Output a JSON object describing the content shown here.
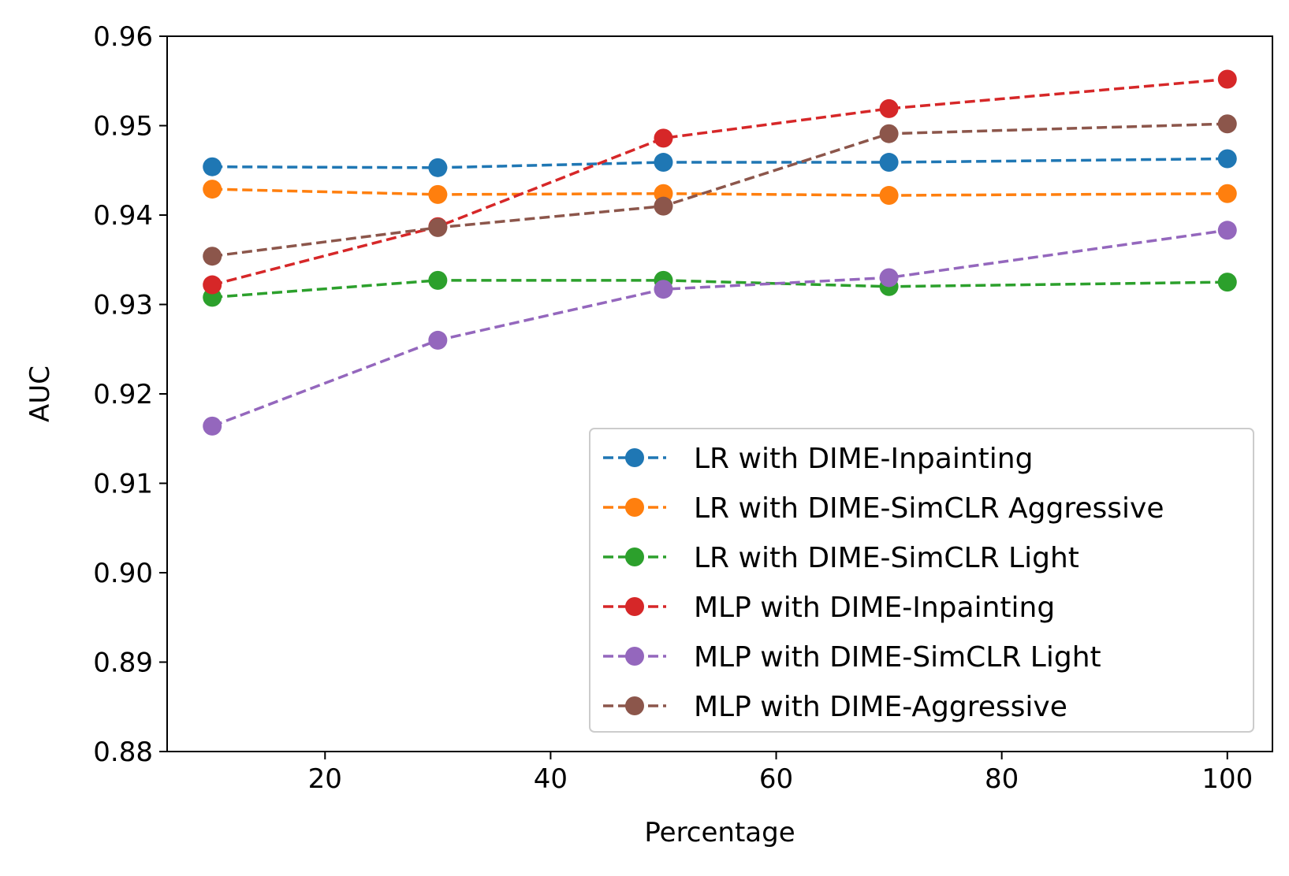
{
  "chart_data": {
    "type": "line",
    "title": "",
    "xlabel": "Percentage",
    "ylabel": "AUC",
    "xlim": [
      6.0,
      104.0
    ],
    "ylim": [
      0.88,
      0.96
    ],
    "xticks": [
      20,
      40,
      60,
      80,
      100
    ],
    "yticks": [
      0.88,
      0.89,
      0.9,
      0.91,
      0.92,
      0.93,
      0.94,
      0.95,
      0.96
    ],
    "xtick_labels": [
      "20",
      "40",
      "60",
      "80",
      "100"
    ],
    "ytick_labels": [
      "0.88",
      "0.89",
      "0.90",
      "0.91",
      "0.92",
      "0.93",
      "0.94",
      "0.95",
      "0.96"
    ],
    "grid": false,
    "legend_position": "lower-right",
    "x": [
      10,
      30,
      50,
      70,
      100
    ],
    "series": [
      {
        "name": "LR with DIME-Inpainting",
        "color": "#1f77b4",
        "values": [
          0.9454,
          0.9453,
          0.9459,
          0.9459,
          0.9463
        ]
      },
      {
        "name": "LR with DIME-SimCLR Aggressive",
        "color": "#ff7f0e",
        "values": [
          0.9429,
          0.9423,
          0.9424,
          0.9422,
          0.9424
        ]
      },
      {
        "name": "LR with DIME-SimCLR Light",
        "color": "#2ca02c",
        "values": [
          0.9308,
          0.9327,
          0.9327,
          0.932,
          0.9325
        ]
      },
      {
        "name": "MLP with DIME-Inpainting",
        "color": "#d62728",
        "values": [
          0.9322,
          0.9387,
          0.9486,
          0.9519,
          0.9552
        ]
      },
      {
        "name": "MLP with DIME-SimCLR Light",
        "color": "#9467bd",
        "values": [
          0.9164,
          0.926,
          0.9317,
          0.933,
          0.9383
        ]
      },
      {
        "name": "MLP with DIME-Aggressive",
        "color": "#8c564b",
        "values": [
          0.9354,
          0.9386,
          0.941,
          0.9491,
          0.9502
        ]
      }
    ]
  }
}
